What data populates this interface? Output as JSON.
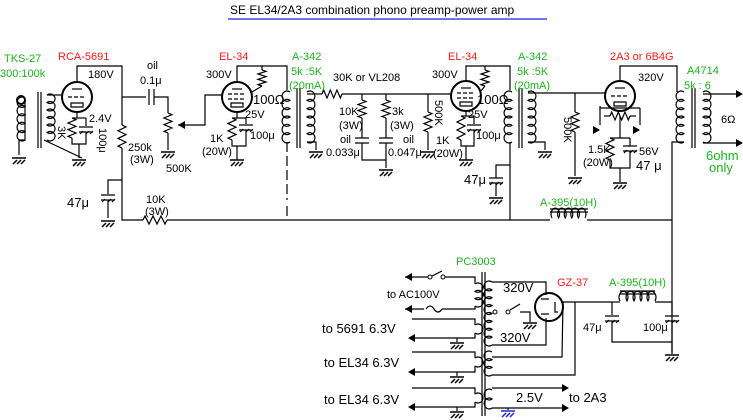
{
  "title": "SE EL34/2A3 combination phono preamp-power amp",
  "colors": {
    "part_number": "#1db31d",
    "tube": "#ff1a1a",
    "title_underline": "#2222dd",
    "ground_blue": "#2222dd"
  },
  "stage1": {
    "input_transformer": "TKS-27",
    "input_ratio": "300:100k",
    "tube": "RCA-5691",
    "plate_v": "180V",
    "cathode_v": "2.4V",
    "cathode_r": "3K",
    "cathode_c": "100μ",
    "coupling_type": "oil",
    "coupling_c": "0.1μ",
    "plate_r": "250k",
    "plate_r_w": "(3W)",
    "volume": "500K",
    "decoupling_c": "47μ",
    "decoupling_r": "10K",
    "decoupling_r_w": "(3W)"
  },
  "stage2": {
    "tube": "EL-34",
    "plate_v": "300V",
    "screen_r": "100Ω",
    "cathode_v": "25V",
    "cathode_c": "100μ",
    "cathode_r": "1K",
    "cathode_r_w": "(20W)",
    "transformer": "A-342",
    "transformer_ratio": "5k :5K",
    "transformer_current": "(20mA)"
  },
  "eq": {
    "series_r": "30K or VL208",
    "r1": "10K",
    "r1_w": "(3W)",
    "r2": "3k",
    "r2_w": "(3W)",
    "c1_type": "oil",
    "c1": "0.033μ",
    "c2_type": "oil",
    "c2": "0.047μ"
  },
  "stage3": {
    "tube": "EL-34",
    "plate_v": "300V",
    "grid_r": "500K",
    "screen_r": "100Ω",
    "cathode_v": "25V",
    "cathode_c": "100μ",
    "cathode_r": "1K",
    "cathode_r_w": "(20W)",
    "decoupling_c": "47μ",
    "transformer": "A-342",
    "transformer_ratio": "5k :5K",
    "transformer_current": "(20mA)"
  },
  "output": {
    "tube": "2A3 or 6B4G",
    "plate_v": "320V",
    "grid_r": "500K",
    "cathode_r": "1.5K",
    "cathode_r_w": "(20W)",
    "cathode_v": "56V",
    "cathode_c": "47 μ",
    "transformer": "A4714",
    "transformer_ratio": "5k : 6",
    "load": "6Ω",
    "note_line1": "6ohm",
    "note_line2": "only",
    "choke": "A-395(10H)"
  },
  "power": {
    "transformer": "PC3003",
    "ac_in": "to AC100V",
    "heater1": "to 5691  6.3V",
    "heater2": "to EL34  6.3V",
    "heater3": "to EL34  6.3V",
    "hv_top": "320V",
    "hv_bottom": "320V",
    "fil_2a3_v": "2.5V",
    "fil_2a3_to": "to 2A3",
    "rectifier": "GZ-37",
    "choke": "A-395(10H)",
    "c1": "47μ",
    "c2": "100μ"
  }
}
